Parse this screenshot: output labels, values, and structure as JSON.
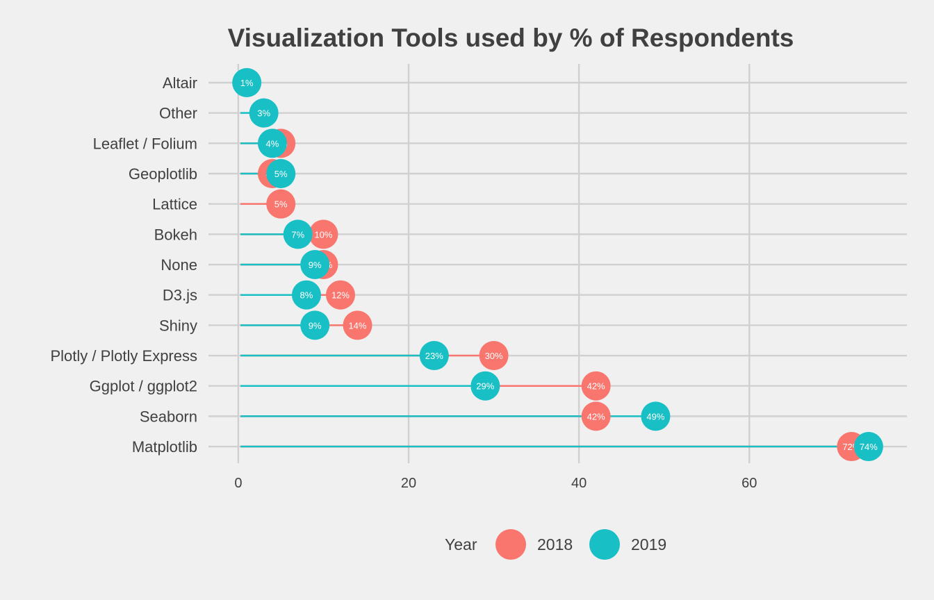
{
  "chart_data": {
    "type": "dot",
    "title": "Visualization Tools used by % of Respondents",
    "categories": [
      "Altair",
      "Other",
      "Leaflet / Folium",
      "Geoplotlib",
      "Lattice",
      "Bokeh",
      "None",
      "D3.js",
      "Shiny",
      "Plotly / Plotly Express",
      "Ggplot / ggplot2",
      "Seaborn",
      "Matplotlib"
    ],
    "series": [
      {
        "name": "2018",
        "color": "#f8766d",
        "values": [
          null,
          null,
          5,
          4,
          5,
          10,
          10,
          12,
          14,
          30,
          42,
          42,
          72
        ],
        "labels": [
          "",
          "",
          "5%",
          "4%",
          "5%",
          "10%",
          "10%",
          "12%",
          "14%",
          "30%",
          "42%",
          "42%",
          "72%"
        ]
      },
      {
        "name": "2019",
        "color": "#18bfc4",
        "values": [
          1,
          3,
          4,
          5,
          null,
          7,
          9,
          8,
          9,
          23,
          29,
          49,
          74
        ],
        "labels": [
          "1%",
          "3%",
          "4%",
          "5%",
          "",
          "7%",
          "9%",
          "8%",
          "9%",
          "23%",
          "29%",
          "49%",
          "74%"
        ]
      }
    ],
    "xlim": [
      -3.5,
      78.5
    ],
    "xticks": [
      0,
      20,
      40,
      60
    ],
    "xtick_labels": [
      "0",
      "20",
      "40",
      "60"
    ],
    "grid": true,
    "legend": {
      "title": "Year",
      "position": "bottom",
      "entries": [
        "2018",
        "2019"
      ]
    }
  }
}
